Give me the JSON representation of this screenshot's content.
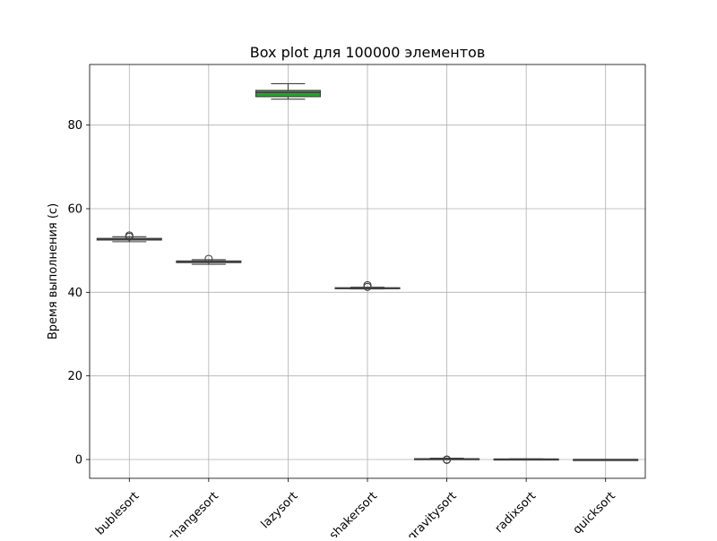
{
  "chart_data": {
    "type": "box",
    "title": "Box plot для 100000 элементов",
    "xlabel": "",
    "ylabel": "Время выполнения (с)",
    "ylim": [
      -4.5,
      94.5
    ],
    "yticks": [
      0,
      20,
      40,
      60,
      80
    ],
    "grid": true,
    "categories": [
      "bublesort",
      "changesort",
      "lazysort",
      "shakersort",
      "gravitysort",
      "radixsort",
      "quicksort"
    ],
    "series": [
      {
        "category": "bublesort",
        "whisker_low": 52.1,
        "q1": 52.5,
        "median": 52.7,
        "q3": 52.9,
        "whisker_high": 53.3,
        "outliers": [
          53.6,
          53.3
        ],
        "color": "#1f77b4"
      },
      {
        "category": "changesort",
        "whisker_low": 46.7,
        "q1": 47.1,
        "median": 47.3,
        "q3": 47.5,
        "whisker_high": 47.8,
        "outliers": [
          48.0
        ],
        "color": "#ff7f0e"
      },
      {
        "category": "lazysort",
        "whisker_low": 86.2,
        "q1": 86.8,
        "median": 87.8,
        "q3": 88.3,
        "whisker_high": 89.9,
        "outliers": [],
        "color": "#2ca02c"
      },
      {
        "category": "shakersort",
        "whisker_low": 40.8,
        "q1": 40.9,
        "median": 41.0,
        "q3": 41.1,
        "whisker_high": 41.2,
        "outliers": [
          41.3,
          41.7
        ],
        "color": "#d62728"
      },
      {
        "category": "gravitysort",
        "whisker_low": 0.05,
        "q1": 0.1,
        "median": 0.15,
        "q3": 0.2,
        "whisker_high": 0.3,
        "outliers": [
          0.0,
          -0.1
        ],
        "color": "#9467bd"
      },
      {
        "category": "radixsort",
        "whisker_low": 0.05,
        "q1": 0.08,
        "median": 0.1,
        "q3": 0.12,
        "whisker_high": 0.15,
        "outliers": [],
        "color": "#8c564b"
      },
      {
        "category": "quicksort",
        "whisker_low": 0.0,
        "q1": 0.0,
        "median": 0.0,
        "q3": 0.0,
        "whisker_high": 0.0,
        "outliers": [],
        "color": "#e377c2"
      }
    ]
  }
}
